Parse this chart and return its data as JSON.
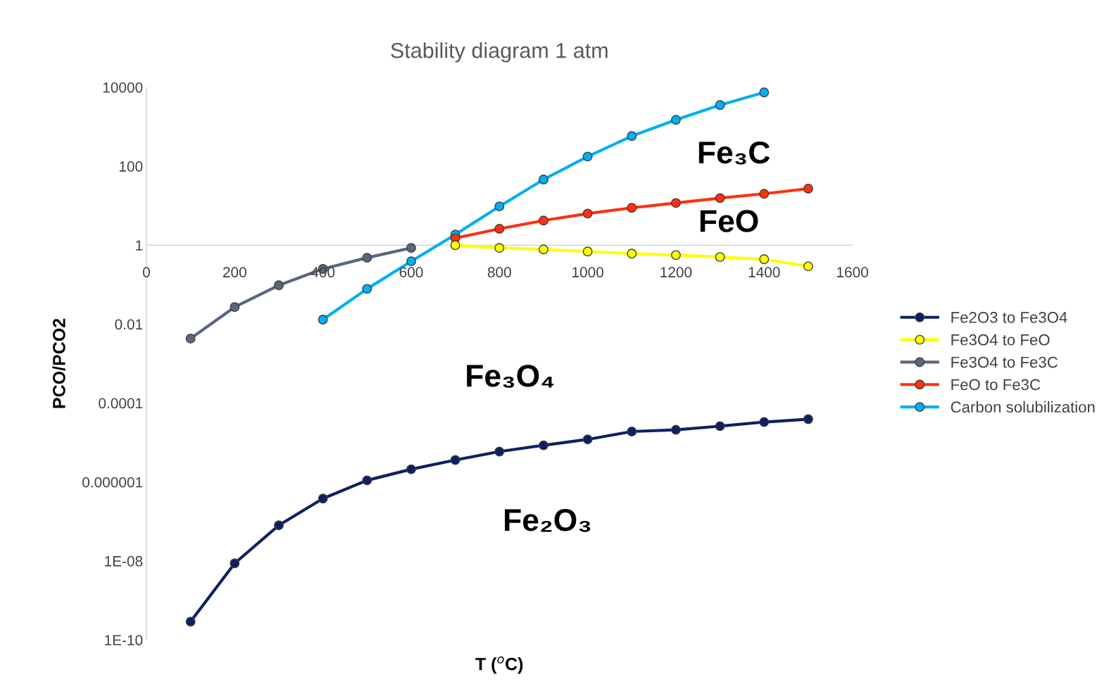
{
  "chart_data": {
    "type": "line",
    "title": "Stability diagram 1 atm",
    "xlabel": "T ($^{o}$C)",
    "ylabel": "PCO/PCO2",
    "log": "y",
    "xlim": [
      0,
      1600
    ],
    "xticks": [
      0,
      200,
      400,
      600,
      800,
      1000,
      1200,
      1400,
      1600
    ],
    "ylim": [
      1e-10,
      10000
    ],
    "yticks": [
      {
        "value": 1e-10,
        "label": "1E-10"
      },
      {
        "value": 1e-08,
        "label": "1E-08"
      },
      {
        "value": 1e-06,
        "label": "0.000001"
      },
      {
        "value": 0.0001,
        "label": "0.0001"
      },
      {
        "value": 0.01,
        "label": "0.01"
      },
      {
        "value": 1,
        "label": "1"
      },
      {
        "value": 100,
        "label": "100"
      },
      {
        "value": 10000,
        "label": "10000"
      }
    ],
    "grid": false,
    "legend": "right",
    "marker": "circle",
    "line_style": "solid",
    "series": [
      {
        "name": "Fe2O3 to Fe3O4",
        "color": "#0d2060",
        "x": [
          100,
          200,
          300,
          400,
          500,
          600,
          700,
          800,
          900,
          1000,
          1100,
          1200,
          1300,
          1400,
          1500
        ],
        "values": [
          2.9e-10,
          8.7e-09,
          8e-08,
          3.8e-07,
          1.1e-06,
          2.1e-06,
          3.6e-06,
          5.9e-06,
          8.5e-06,
          1.2e-05,
          1.9e-05,
          2.1e-05,
          2.6e-05,
          3.3e-05,
          3.9e-05
        ]
      },
      {
        "name": "Fe3O4 to FeO",
        "color": "#ffff00",
        "x": [
          700,
          800,
          900,
          1000,
          1100,
          1200,
          1300,
          1400,
          1500
        ],
        "values": [
          1.0,
          0.85,
          0.78,
          0.69,
          0.61,
          0.56,
          0.5,
          0.44,
          0.29
        ]
      },
      {
        "name": "Fe3O4 to Fe3C",
        "color": "#5a6680",
        "x": [
          100,
          200,
          300,
          400,
          500,
          600
        ],
        "values": [
          0.0043,
          0.027,
          0.096,
          0.25,
          0.48,
          0.85
        ]
      },
      {
        "name": "FeO to Fe3C",
        "color": "#ff3010",
        "x": [
          700,
          800,
          900,
          1000,
          1100,
          1200,
          1300,
          1400,
          1500
        ],
        "values": [
          1.5,
          2.6,
          4.2,
          6.3,
          8.8,
          11.7,
          15.6,
          20,
          27
        ]
      },
      {
        "name": "Carbon solubilization",
        "color": "#00b0f0",
        "x": [
          400,
          500,
          600,
          700,
          800,
          900,
          1000,
          1100,
          1200,
          1300,
          1400
        ],
        "values": [
          0.013,
          0.078,
          0.39,
          1.85,
          9.6,
          46,
          176,
          580,
          1490,
          3540,
          7400
        ]
      }
    ],
    "annotations": [
      "Fe₃C",
      "FeO",
      "Fe₃O₄",
      "Fe₂O₃"
    ]
  }
}
